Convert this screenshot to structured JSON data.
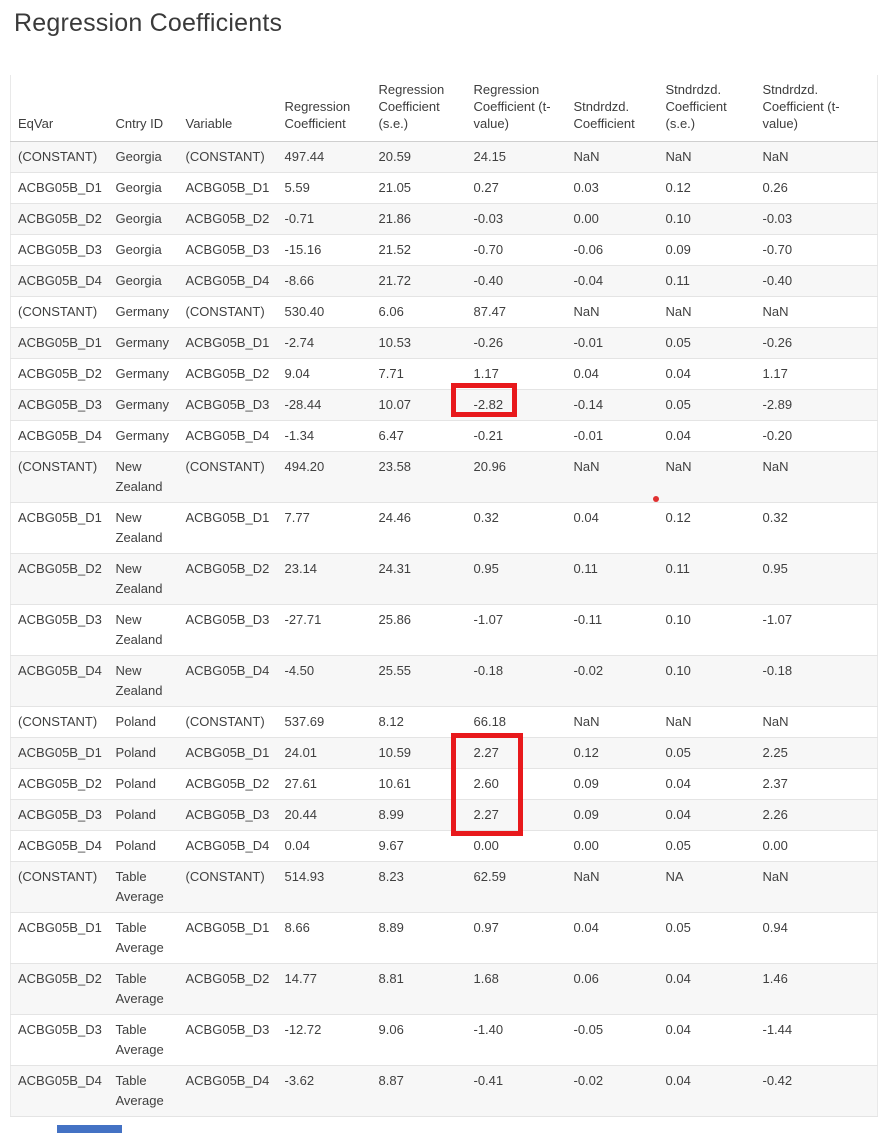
{
  "page": {
    "title": "Regression Coefficients",
    "background_color": "#ffffff",
    "text_color": "#3f3f3f"
  },
  "chart_data": {
    "type": "table",
    "title": "Regression Coefficients",
    "columns": [
      "EqVar",
      "Cntry ID",
      "Variable",
      "Regression Coefficient",
      "Regression Coefficient (s.e.)",
      "Regression Coefficient (t-value)",
      "Stndrdzd. Coefficient",
      "Stndrdzd. Coefficient (s.e.)",
      "Stndrdzd. Coefficient (t-value)"
    ],
    "row_groups": [
      "Georgia",
      "Germany",
      "New Zealand",
      "Poland",
      "Table Average"
    ],
    "rows": [
      [
        "(CONSTANT)",
        "Georgia",
        "(CONSTANT)",
        "497.44",
        "20.59",
        "24.15",
        "NaN",
        "NaN",
        "NaN"
      ],
      [
        "ACBG05B_D1",
        "Georgia",
        "ACBG05B_D1",
        "5.59",
        "21.05",
        "0.27",
        "0.03",
        "0.12",
        "0.26"
      ],
      [
        "ACBG05B_D2",
        "Georgia",
        "ACBG05B_D2",
        "-0.71",
        "21.86",
        "-0.03",
        "0.00",
        "0.10",
        "-0.03"
      ],
      [
        "ACBG05B_D3",
        "Georgia",
        "ACBG05B_D3",
        "-15.16",
        "21.52",
        "-0.70",
        "-0.06",
        "0.09",
        "-0.70"
      ],
      [
        "ACBG05B_D4",
        "Georgia",
        "ACBG05B_D4",
        "-8.66",
        "21.72",
        "-0.40",
        "-0.04",
        "0.11",
        "-0.40"
      ],
      [
        "(CONSTANT)",
        "Germany",
        "(CONSTANT)",
        "530.40",
        "6.06",
        "87.47",
        "NaN",
        "NaN",
        "NaN"
      ],
      [
        "ACBG05B_D1",
        "Germany",
        "ACBG05B_D1",
        "-2.74",
        "10.53",
        "-0.26",
        "-0.01",
        "0.05",
        "-0.26"
      ],
      [
        "ACBG05B_D2",
        "Germany",
        "ACBG05B_D2",
        "9.04",
        "7.71",
        "1.17",
        "0.04",
        "0.04",
        "1.17"
      ],
      [
        "ACBG05B_D3",
        "Germany",
        "ACBG05B_D3",
        "-28.44",
        "10.07",
        "-2.82",
        "-0.14",
        "0.05",
        "-2.89"
      ],
      [
        "ACBG05B_D4",
        "Germany",
        "ACBG05B_D4",
        "-1.34",
        "6.47",
        "-0.21",
        "-0.01",
        "0.04",
        "-0.20"
      ],
      [
        "(CONSTANT)",
        "New Zealand",
        "(CONSTANT)",
        "494.20",
        "23.58",
        "20.96",
        "NaN",
        "NaN",
        "NaN"
      ],
      [
        "ACBG05B_D1",
        "New Zealand",
        "ACBG05B_D1",
        "7.77",
        "24.46",
        "0.32",
        "0.04",
        "0.12",
        "0.32"
      ],
      [
        "ACBG05B_D2",
        "New Zealand",
        "ACBG05B_D2",
        "23.14",
        "24.31",
        "0.95",
        "0.11",
        "0.11",
        "0.95"
      ],
      [
        "ACBG05B_D3",
        "New Zealand",
        "ACBG05B_D3",
        "-27.71",
        "25.86",
        "-1.07",
        "-0.11",
        "0.10",
        "-1.07"
      ],
      [
        "ACBG05B_D4",
        "New Zealand",
        "ACBG05B_D4",
        "-4.50",
        "25.55",
        "-0.18",
        "-0.02",
        "0.10",
        "-0.18"
      ],
      [
        "(CONSTANT)",
        "Poland",
        "(CONSTANT)",
        "537.69",
        "8.12",
        "66.18",
        "NaN",
        "NaN",
        "NaN"
      ],
      [
        "ACBG05B_D1",
        "Poland",
        "ACBG05B_D1",
        "24.01",
        "10.59",
        "2.27",
        "0.12",
        "0.05",
        "2.25"
      ],
      [
        "ACBG05B_D2",
        "Poland",
        "ACBG05B_D2",
        "27.61",
        "10.61",
        "2.60",
        "0.09",
        "0.04",
        "2.37"
      ],
      [
        "ACBG05B_D3",
        "Poland",
        "ACBG05B_D3",
        "20.44",
        "8.99",
        "2.27",
        "0.09",
        "0.04",
        "2.26"
      ],
      [
        "ACBG05B_D4",
        "Poland",
        "ACBG05B_D4",
        "0.04",
        "9.67",
        "0.00",
        "0.00",
        "0.05",
        "0.00"
      ],
      [
        "(CONSTANT)",
        "Table Average",
        "(CONSTANT)",
        "514.93",
        "8.23",
        "62.59",
        "NaN",
        "NA",
        "NaN"
      ],
      [
        "ACBG05B_D1",
        "Table Average",
        "ACBG05B_D1",
        "8.66",
        "8.89",
        "0.97",
        "0.04",
        "0.05",
        "0.94"
      ],
      [
        "ACBG05B_D2",
        "Table Average",
        "ACBG05B_D2",
        "14.77",
        "8.81",
        "1.68",
        "0.06",
        "0.04",
        "1.46"
      ],
      [
        "ACBG05B_D3",
        "Table Average",
        "ACBG05B_D3",
        "-12.72",
        "9.06",
        "-1.40",
        "-0.05",
        "0.04",
        "-1.44"
      ],
      [
        "ACBG05B_D4",
        "Table Average",
        "ACBG05B_D4",
        "-3.62",
        "8.87",
        "-0.41",
        "-0.02",
        "0.04",
        "-0.42"
      ]
    ],
    "layout_hints": {
      "stripe_odd_rows": "#f7f7f7",
      "stripe_even_rows": "#ffffff",
      "header_border_color": "#cfcfcf",
      "row_border_color": "#e4e4e4"
    }
  },
  "annotations": {
    "highlight_color": "#e8191c",
    "boxes": [
      {
        "target": "Germany ACBG05B_D3 Regression Coefficient (t-value)",
        "highlighted_value": "-2.82"
      },
      {
        "target": "Poland ACBG05B_D1 to ACBG05B_D3 Regression Coefficient (t-value)",
        "highlighted_values": [
          "2.27",
          "2.60",
          "2.27"
        ]
      }
    ],
    "red_dot": {
      "color": "#e03131",
      "location": "below NaN in Stndrdzd. Coefficient (s.e.) column, New Zealand (CONSTANT) row"
    },
    "bottom_bar": {
      "color": "#4472c4",
      "location": "partial blue bar at bottom-left edge"
    }
  }
}
